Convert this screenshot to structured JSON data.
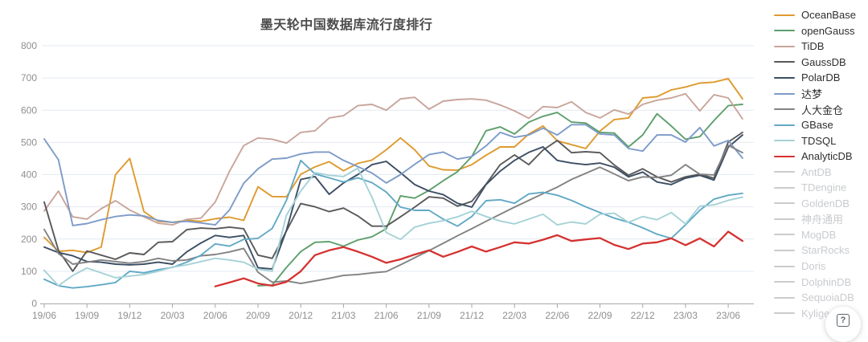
{
  "help_button": {
    "icon": "question-mark-icon",
    "label": "?"
  },
  "chart_data": {
    "type": "line",
    "title": "墨天轮中国数据库流行度排行",
    "xlabel": "",
    "ylabel": "",
    "grid": true,
    "legend_position": "right",
    "y_axis": {
      "min": 0,
      "max": 800,
      "interval": 100,
      "tick_labels": [
        0,
        100,
        200,
        300,
        400,
        500,
        600,
        700,
        800
      ]
    },
    "x_tick_labels": [
      "19/06",
      "19/09",
      "19/12",
      "20/03",
      "20/06",
      "20/09",
      "20/12",
      "21/03",
      "21/06",
      "21/09",
      "21/12",
      "22/03",
      "22/06",
      "22/09",
      "22/12",
      "23/03",
      "23/06"
    ],
    "x_months": [
      "19/06",
      "19/07",
      "19/08",
      "19/09",
      "19/10",
      "19/11",
      "19/12",
      "20/01",
      "20/02",
      "20/03",
      "20/04",
      "20/05",
      "20/06",
      "20/07",
      "20/08",
      "20/09",
      "20/10",
      "20/11",
      "20/12",
      "21/01",
      "21/02",
      "21/03",
      "21/04",
      "21/05",
      "21/06",
      "21/07",
      "21/08",
      "21/09",
      "21/10",
      "21/11",
      "21/12",
      "22/01",
      "22/02",
      "22/03",
      "22/04",
      "22/05",
      "22/06",
      "22/07",
      "22/08",
      "22/09",
      "22/10",
      "22/11",
      "22/12",
      "23/01",
      "23/02",
      "23/03",
      "23/04",
      "23/05",
      "23/06",
      "23/07"
    ],
    "inactive_color": "#c9cbce",
    "series": [
      {
        "name": "OceanBase",
        "color": "#de9a2e",
        "active": true,
        "width": 1.9,
        "values": [
          205,
          162,
          165,
          158,
          175,
          400,
          450,
          285,
          255,
          252,
          258,
          255,
          263,
          268,
          258,
          362,
          332,
          331,
          401,
          424,
          440,
          412,
          435,
          445,
          477,
          514,
          477,
          427,
          415,
          414,
          431,
          460,
          486,
          486,
          526,
          551,
          505,
          493,
          481,
          535,
          571,
          576,
          638,
          642,
          663,
          672,
          684,
          687,
          698,
          635
        ]
      },
      {
        "name": "openGauss",
        "color": "#5d9f6c",
        "active": true,
        "width": 1.9,
        "values": [
          null,
          null,
          null,
          null,
          null,
          null,
          null,
          null,
          null,
          null,
          null,
          null,
          null,
          null,
          null,
          55,
          57,
          112,
          161,
          190,
          192,
          178,
          197,
          207,
          232,
          334,
          327,
          351,
          381,
          409,
          456,
          536,
          548,
          526,
          563,
          581,
          593,
          563,
          560,
          531,
          529,
          486,
          523,
          589,
          551,
          510,
          518,
          568,
          614,
          618
        ]
      },
      {
        "name": "TiDB",
        "color": "#c8a59b",
        "active": true,
        "width": 1.9,
        "values": [
          287,
          349,
          269,
          262,
          294,
          319,
          290,
          269,
          249,
          244,
          261,
          265,
          315,
          410,
          490,
          514,
          510,
          498,
          531,
          536,
          576,
          583,
          614,
          618,
          600,
          635,
          640,
          603,
          628,
          633,
          635,
          631,
          616,
          598,
          575,
          611,
          608,
          626,
          593,
          576,
          601,
          588,
          618,
          631,
          638,
          651,
          598,
          648,
          638,
          573
        ]
      },
      {
        "name": "GaussDB",
        "color": "#595959",
        "active": true,
        "width": 1.9,
        "values": [
          315,
          165,
          100,
          163,
          150,
          137,
          157,
          152,
          190,
          192,
          229,
          234,
          232,
          237,
          232,
          150,
          140,
          225,
          310,
          300,
          285,
          296,
          272,
          240,
          240,
          269,
          299,
          331,
          327,
          302,
          317,
          370,
          431,
          461,
          431,
          476,
          506,
          468,
          471,
          468,
          430,
          398,
          418,
          393,
          377,
          393,
          401,
          389,
          501,
          531
        ]
      },
      {
        "name": "PolarDB",
        "color": "#3c4e64",
        "active": true,
        "width": 1.9,
        "values": [
          175,
          158,
          148,
          130,
          128,
          122,
          120,
          122,
          128,
          122,
          160,
          188,
          211,
          205,
          211,
          111,
          107,
          227,
          385,
          394,
          339,
          374,
          400,
          431,
          441,
          406,
          369,
          349,
          338,
          311,
          299,
          369,
          411,
          444,
          469,
          486,
          444,
          436,
          431,
          436,
          423,
          393,
          408,
          377,
          369,
          389,
          398,
          383,
          485,
          523
        ]
      },
      {
        "name": "达梦",
        "color": "#7d9bc8",
        "active": true,
        "width": 1.9,
        "values": [
          511,
          446,
          242,
          248,
          260,
          270,
          275,
          272,
          258,
          252,
          255,
          250,
          244,
          290,
          373,
          418,
          448,
          451,
          464,
          470,
          470,
          444,
          425,
          405,
          374,
          400,
          432,
          462,
          470,
          448,
          456,
          489,
          531,
          516,
          523,
          544,
          523,
          555,
          555,
          526,
          523,
          481,
          473,
          523,
          523,
          501,
          546,
          489,
          506,
          451
        ]
      },
      {
        "name": "人大金仓",
        "color": "#828282",
        "active": true,
        "width": 1.9,
        "values": [
          230,
          155,
          122,
          128,
          135,
          130,
          125,
          130,
          140,
          132,
          135,
          148,
          152,
          160,
          171,
          97,
          66,
          70,
          62,
          70,
          78,
          87,
          90,
          95,
          99,
          120,
          142,
          164,
          187,
          210,
          232,
          255,
          277,
          299,
          320,
          341,
          361,
          385,
          404,
          423,
          402,
          381,
          393,
          391,
          398,
          431,
          401,
          399,
          491,
          468
        ]
      },
      {
        "name": "GBase",
        "color": "#62a9c5",
        "active": true,
        "width": 1.9,
        "values": [
          75,
          55,
          48,
          52,
          58,
          65,
          100,
          95,
          105,
          112,
          128,
          150,
          185,
          178,
          199,
          202,
          233,
          320,
          444,
          402,
          390,
          377,
          390,
          375,
          346,
          299,
          289,
          289,
          262,
          240,
          270,
          319,
          322,
          311,
          340,
          345,
          336,
          320,
          300,
          282,
          265,
          252,
          235,
          215,
          202,
          244,
          289,
          324,
          336,
          342
        ]
      },
      {
        "name": "TDSQL",
        "color": "#a5d2d7",
        "active": true,
        "width": 1.9,
        "values": [
          103,
          55,
          87,
          110,
          95,
          80,
          85,
          90,
          100,
          113,
          120,
          130,
          140,
          135,
          128,
          107,
          100,
          274,
          349,
          406,
          398,
          394,
          420,
          330,
          220,
          199,
          237,
          249,
          257,
          269,
          286,
          270,
          256,
          247,
          262,
          277,
          244,
          253,
          247,
          277,
          280,
          252,
          270,
          260,
          282,
          247,
          302,
          306,
          320,
          330
        ]
      },
      {
        "name": "AnalyticDB",
        "color": "#d43230",
        "active": true,
        "width": 2.3,
        "values": [
          null,
          null,
          null,
          null,
          null,
          null,
          null,
          null,
          null,
          null,
          null,
          null,
          53,
          65,
          78,
          62,
          55,
          67,
          100,
          150,
          165,
          175,
          161,
          145,
          126,
          137,
          152,
          165,
          145,
          160,
          177,
          161,
          175,
          190,
          186,
          198,
          212,
          194,
          199,
          203,
          182,
          169,
          186,
          190,
          202,
          181,
          202,
          177,
          223,
          194
        ]
      },
      {
        "name": "AntDB",
        "color": "#c9cbce",
        "active": false,
        "values": []
      },
      {
        "name": "TDengine",
        "color": "#c9cbce",
        "active": false,
        "values": []
      },
      {
        "name": "GoldenDB",
        "color": "#c9cbce",
        "active": false,
        "values": []
      },
      {
        "name": "神舟通用",
        "color": "#c9cbce",
        "active": false,
        "values": []
      },
      {
        "name": "MogDB",
        "color": "#c9cbce",
        "active": false,
        "values": []
      },
      {
        "name": "StarRocks",
        "color": "#c9cbce",
        "active": false,
        "values": []
      },
      {
        "name": "Doris",
        "color": "#c9cbce",
        "active": false,
        "values": []
      },
      {
        "name": "DolphinDB",
        "color": "#c9cbce",
        "active": false,
        "values": []
      },
      {
        "name": "SequoiaDB",
        "color": "#c9cbce",
        "active": false,
        "values": []
      },
      {
        "name": "Kyligence",
        "color": "#c9cbce",
        "active": false,
        "values": []
      }
    ]
  }
}
